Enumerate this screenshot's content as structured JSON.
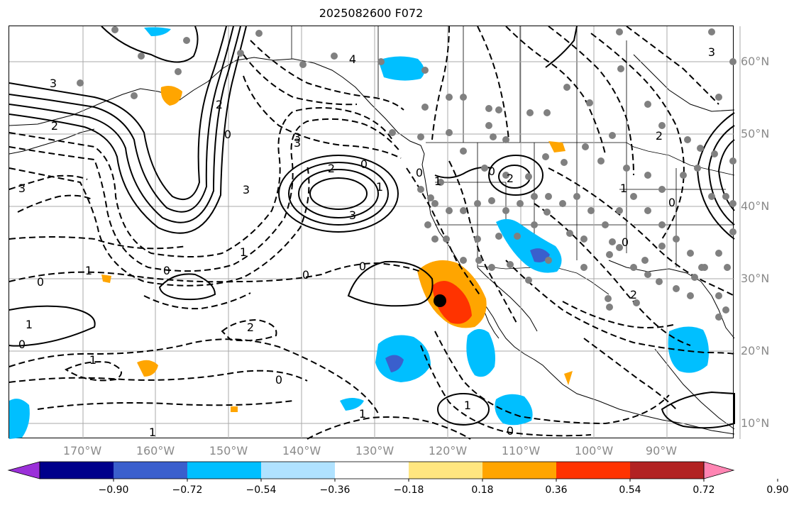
{
  "title": "2025082600 F072",
  "lat_labels": [
    "60°N",
    "50°N",
    "40°N",
    "30°N",
    "20°N",
    "10°N"
  ],
  "lon_labels": [
    "170°W",
    "160°W",
    "150°W",
    "140°W",
    "130°W",
    "120°W",
    "110°W",
    "100°W",
    "90°W"
  ],
  "contour_labels": [
    {
      "text": "3"
    },
    {
      "text": "2"
    },
    {
      "text": "2"
    },
    {
      "text": "0"
    },
    {
      "text": "3"
    },
    {
      "text": "4"
    },
    {
      "text": "3"
    },
    {
      "text": "2"
    },
    {
      "text": "0"
    },
    {
      "text": "1"
    },
    {
      "text": "3"
    },
    {
      "text": "3"
    },
    {
      "text": "1"
    },
    {
      "text": "0"
    },
    {
      "text": "0"
    },
    {
      "text": "1"
    },
    {
      "text": "0"
    },
    {
      "text": "2"
    },
    {
      "text": "1"
    },
    {
      "text": "0"
    },
    {
      "text": "1"
    },
    {
      "text": "0"
    },
    {
      "text": "2"
    },
    {
      "text": "0"
    },
    {
      "text": "1"
    },
    {
      "text": "0"
    },
    {
      "text": "2"
    },
    {
      "text": "1"
    },
    {
      "text": "0"
    },
    {
      "text": "0"
    },
    {
      "text": "3"
    },
    {
      "text": "2"
    },
    {
      "text": "1"
    },
    {
      "text": "1"
    },
    {
      "text": "0"
    },
    {
      "text": "3"
    },
    {
      "text": "1"
    },
    {
      "text": "0"
    }
  ],
  "colorbar": {
    "ticks": [
      "−0.90",
      "−0.72",
      "−0.54",
      "−0.36",
      "−0.18",
      "0.18",
      "0.36",
      "0.54",
      "0.72",
      "0.90"
    ],
    "colors": [
      "#9b30d9",
      "#00008b",
      "#3a5fcd",
      "#00bfff",
      "#b0e2ff",
      "#ffffff",
      "#ffe680",
      "#ffa500",
      "#ff3300",
      "#b22222",
      "#ff85b3"
    ]
  },
  "colors": {
    "grid": "#a8a8a8",
    "label": "#8a8a8a",
    "station": "#808080",
    "marker": "#000000"
  }
}
